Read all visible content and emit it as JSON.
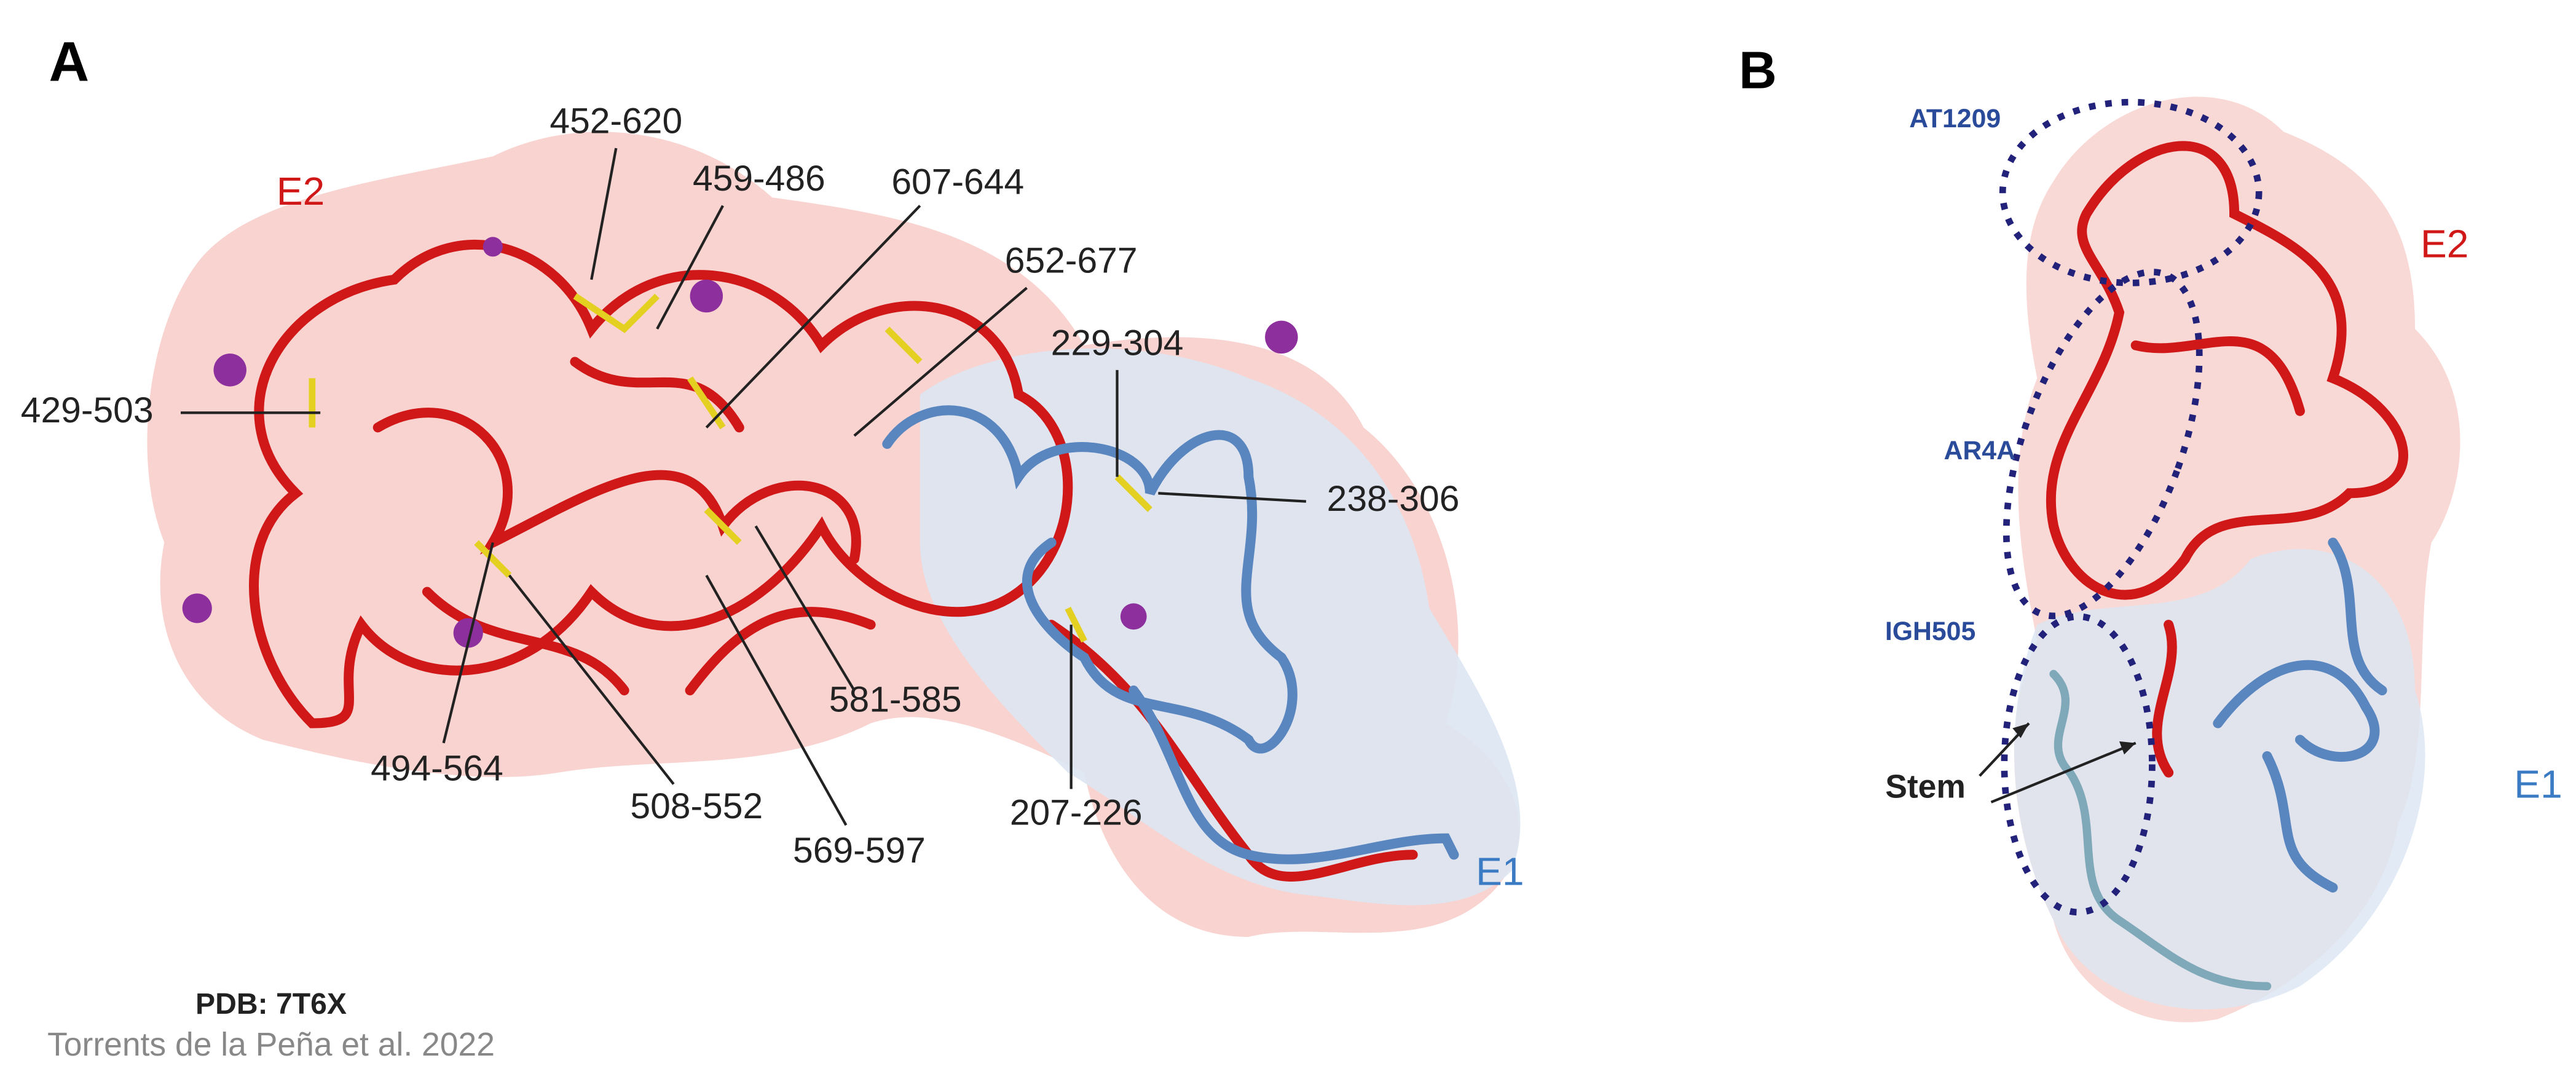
{
  "panel_a": {
    "label": "A",
    "e2_label": "E2",
    "e1_label": "E1",
    "disulfides": [
      "452-620",
      "459-486",
      "607-644",
      "652-677",
      "229-304",
      "429-503",
      "238-306",
      "581-585",
      "494-564",
      "508-552",
      "569-597",
      "207-226"
    ],
    "pdb": "PDB: 7T6X",
    "citation": "Torrents de la Peña et al. 2022"
  },
  "panel_b": {
    "label": "B",
    "e2_label": "E2",
    "e1_label": "E1",
    "epitopes": [
      "AT1209",
      "AR4A",
      "IGH505"
    ],
    "stem_label": "Stem"
  }
}
